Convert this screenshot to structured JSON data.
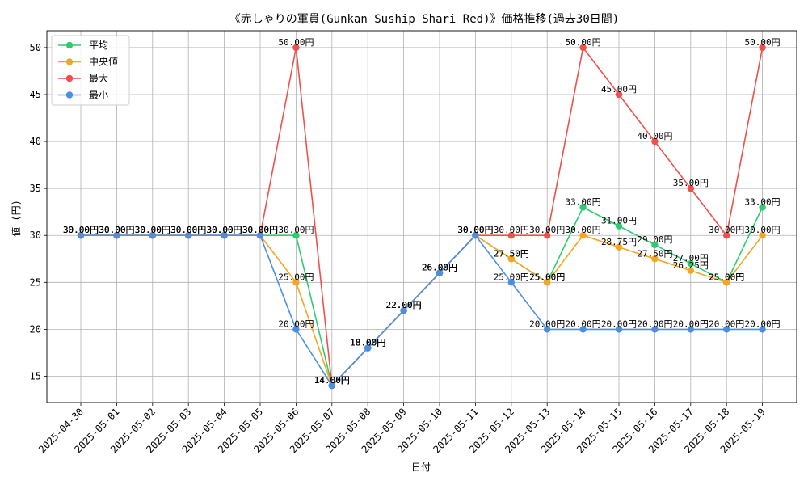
{
  "chart_data": {
    "type": "line",
    "title": "《赤しゃりの軍貫(Gunkan Suship Shari Red)》価格推移(過去30日間)",
    "xlabel": "日付",
    "ylabel": "値 (円)",
    "ylim": [
      12.2,
      51.8
    ],
    "yticks": [
      15,
      20,
      25,
      30,
      35,
      40,
      45,
      50
    ],
    "grid": true,
    "legend_position": "top-left",
    "categories": [
      "2025-04-30",
      "2025-05-01",
      "2025-05-02",
      "2025-05-03",
      "2025-05-04",
      "2025-05-05",
      "2025-05-06",
      "2025-05-07",
      "2025-05-08",
      "2025-05-09",
      "2025-05-10",
      "2025-05-11",
      "2025-05-12",
      "2025-05-13",
      "2025-05-14",
      "2025-05-15",
      "2025-05-16",
      "2025-05-17",
      "2025-05-18",
      "2025-05-19"
    ],
    "series": [
      {
        "name": "平均",
        "color": "#2ecc71",
        "values": [
          30,
          30,
          30,
          30,
          30,
          30,
          30,
          14,
          18,
          22,
          26,
          30,
          27.5,
          25,
          33,
          31,
          29,
          27,
          25,
          33
        ]
      },
      {
        "name": "中央値",
        "color": "#f5a623",
        "values": [
          30,
          30,
          30,
          30,
          30,
          30,
          25,
          14,
          18,
          22,
          26,
          30,
          27.5,
          25,
          30,
          28.75,
          27.5,
          26.25,
          25,
          30
        ]
      },
      {
        "name": "最大",
        "color": "#f0504a",
        "values": [
          30,
          30,
          30,
          30,
          30,
          30,
          50,
          14,
          18,
          22,
          26,
          30,
          30,
          30,
          50,
          45,
          40,
          35,
          30,
          50
        ]
      },
      {
        "name": "最小",
        "color": "#4a90e2",
        "values": [
          30,
          30,
          30,
          30,
          30,
          30,
          20,
          14,
          18,
          22,
          26,
          30,
          25,
          20,
          20,
          20,
          20,
          20,
          20,
          20
        ]
      }
    ],
    "value_suffix": "円"
  }
}
